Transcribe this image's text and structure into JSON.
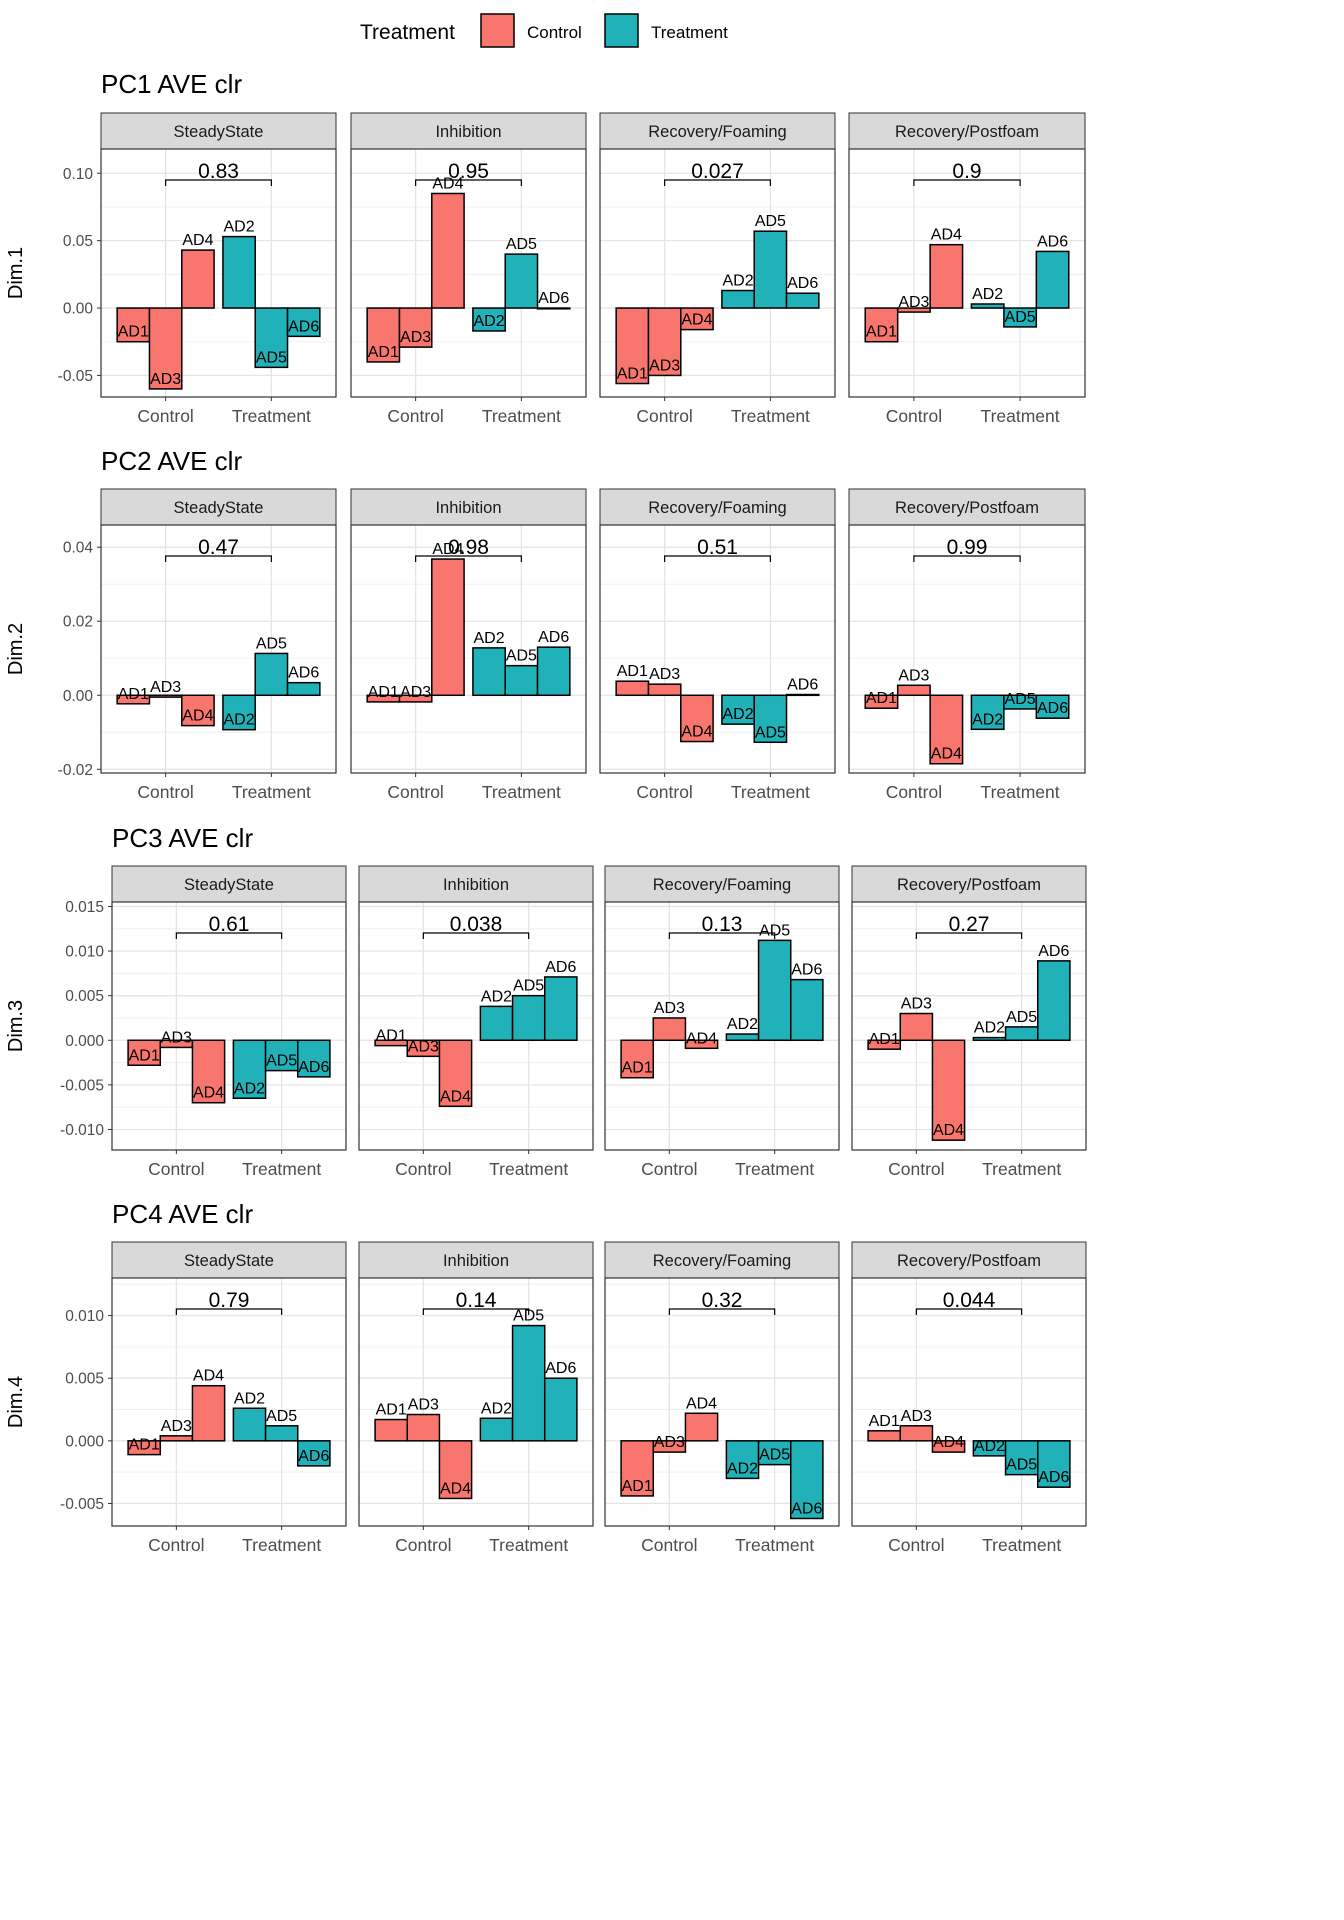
{
  "legend": {
    "title": "Treatment",
    "entries": [
      {
        "label": "Control",
        "color": "#F8766D"
      },
      {
        "label": "Treatment",
        "color": "#00BFC4"
      }
    ]
  },
  "colors": {
    "Control": "#F8766D",
    "Treatment": "#20B2B8"
  },
  "facets": [
    "SteadyState",
    "Inhibition",
    "Recovery/Foaming",
    "Recovery/Postfoam"
  ],
  "x_categories": [
    "Control",
    "Treatment"
  ],
  "chart_data": [
    {
      "type": "bar",
      "title": "PC1 AVE clr",
      "ylabel": "Dim.1",
      "ylim": [
        -0.066,
        0.118
      ],
      "yticks": [
        {
          "v": 0.1,
          "label": "0.10"
        },
        {
          "v": 0.05,
          "label": "0.05"
        },
        {
          "v": 0.0,
          "label": "0.00"
        },
        {
          "v": -0.05,
          "label": "-0.05"
        }
      ],
      "panels": [
        {
          "facet": "SteadyState",
          "pvalue": "0.83",
          "bars": [
            {
              "label": "AD1",
              "group": "Control",
              "value": -0.025
            },
            {
              "label": "AD3",
              "group": "Control",
              "value": -0.06
            },
            {
              "label": "AD4",
              "group": "Control",
              "value": 0.043
            },
            {
              "label": "AD2",
              "group": "Treatment",
              "value": 0.053
            },
            {
              "label": "AD5",
              "group": "Treatment",
              "value": -0.044
            },
            {
              "label": "AD6",
              "group": "Treatment",
              "value": -0.021
            }
          ]
        },
        {
          "facet": "Inhibition",
          "pvalue": "0.95",
          "bars": [
            {
              "label": "AD1",
              "group": "Control",
              "value": -0.04
            },
            {
              "label": "AD3",
              "group": "Control",
              "value": -0.029
            },
            {
              "label": "AD4",
              "group": "Control",
              "value": 0.085
            },
            {
              "label": "AD2",
              "group": "Treatment",
              "value": -0.017
            },
            {
              "label": "AD5",
              "group": "Treatment",
              "value": 0.04
            },
            {
              "label": "AD6",
              "group": "Treatment",
              "value": 0.0
            }
          ]
        },
        {
          "facet": "Recovery/Foaming",
          "pvalue": "0.027",
          "bars": [
            {
              "label": "AD1",
              "group": "Control",
              "value": -0.056
            },
            {
              "label": "AD3",
              "group": "Control",
              "value": -0.05
            },
            {
              "label": "AD4",
              "group": "Control",
              "value": -0.016
            },
            {
              "label": "AD2",
              "group": "Treatment",
              "value": 0.013
            },
            {
              "label": "AD5",
              "group": "Treatment",
              "value": 0.057
            },
            {
              "label": "AD6",
              "group": "Treatment",
              "value": 0.011
            }
          ]
        },
        {
          "facet": "Recovery/Postfoam",
          "pvalue": "0.9",
          "bars": [
            {
              "label": "AD1",
              "group": "Control",
              "value": -0.025
            },
            {
              "label": "AD3",
              "group": "Control",
              "value": -0.003
            },
            {
              "label": "AD4",
              "group": "Control",
              "value": 0.047
            },
            {
              "label": "AD2",
              "group": "Treatment",
              "value": 0.003
            },
            {
              "label": "AD5",
              "group": "Treatment",
              "value": -0.014
            },
            {
              "label": "AD6",
              "group": "Treatment",
              "value": 0.042
            }
          ]
        }
      ]
    },
    {
      "type": "bar",
      "title": "PC2 AVE clr",
      "ylabel": "Dim.2",
      "ylim": [
        -0.021,
        0.046
      ],
      "yticks": [
        {
          "v": 0.04,
          "label": "0.04"
        },
        {
          "v": 0.02,
          "label": "0.02"
        },
        {
          "v": 0.0,
          "label": "0.00"
        },
        {
          "v": -0.02,
          "label": "-0.02"
        }
      ],
      "panels": [
        {
          "facet": "SteadyState",
          "pvalue": "0.47",
          "bars": [
            {
              "label": "AD1",
              "group": "Control",
              "value": -0.0023
            },
            {
              "label": "AD3",
              "group": "Control",
              "value": -0.0005
            },
            {
              "label": "AD4",
              "group": "Control",
              "value": -0.0082
            },
            {
              "label": "AD2",
              "group": "Treatment",
              "value": -0.0093
            },
            {
              "label": "AD5",
              "group": "Treatment",
              "value": 0.0113
            },
            {
              "label": "AD6",
              "group": "Treatment",
              "value": 0.0034
            }
          ]
        },
        {
          "facet": "Inhibition",
          "pvalue": "0.98",
          "bars": [
            {
              "label": "AD1",
              "group": "Control",
              "value": -0.0018
            },
            {
              "label": "AD3",
              "group": "Control",
              "value": -0.0018
            },
            {
              "label": "AD4",
              "group": "Control",
              "value": 0.0368
            },
            {
              "label": "AD2",
              "group": "Treatment",
              "value": 0.0128
            },
            {
              "label": "AD5",
              "group": "Treatment",
              "value": 0.008
            },
            {
              "label": "AD6",
              "group": "Treatment",
              "value": 0.013
            }
          ]
        },
        {
          "facet": "Recovery/Foaming",
          "pvalue": "0.51",
          "bars": [
            {
              "label": "AD1",
              "group": "Control",
              "value": 0.0038
            },
            {
              "label": "AD3",
              "group": "Control",
              "value": 0.003
            },
            {
              "label": "AD4",
              "group": "Control",
              "value": -0.0125
            },
            {
              "label": "AD2",
              "group": "Treatment",
              "value": -0.0078
            },
            {
              "label": "AD5",
              "group": "Treatment",
              "value": -0.0127
            },
            {
              "label": "AD6",
              "group": "Treatment",
              "value": 0.0002
            }
          ]
        },
        {
          "facet": "Recovery/Postfoam",
          "pvalue": "0.99",
          "bars": [
            {
              "label": "AD1",
              "group": "Control",
              "value": -0.0035
            },
            {
              "label": "AD3",
              "group": "Control",
              "value": 0.0027
            },
            {
              "label": "AD4",
              "group": "Control",
              "value": -0.0185
            },
            {
              "label": "AD2",
              "group": "Treatment",
              "value": -0.0092
            },
            {
              "label": "AD5",
              "group": "Treatment",
              "value": -0.0037
            },
            {
              "label": "AD6",
              "group": "Treatment",
              "value": -0.0062
            }
          ]
        }
      ]
    },
    {
      "type": "bar",
      "title": "PC3 AVE clr",
      "ylabel": "Dim.3",
      "ylim": [
        -0.0123,
        0.0155
      ],
      "yticks": [
        {
          "v": 0.015,
          "label": "0.015"
        },
        {
          "v": 0.01,
          "label": "0.010"
        },
        {
          "v": 0.005,
          "label": "0.005"
        },
        {
          "v": 0.0,
          "label": "0.000"
        },
        {
          "v": -0.005,
          "label": "-0.005"
        },
        {
          "v": -0.01,
          "label": "-0.010"
        }
      ],
      "panels": [
        {
          "facet": "SteadyState",
          "pvalue": "0.61",
          "bars": [
            {
              "label": "AD1",
              "group": "Control",
              "value": -0.0028
            },
            {
              "label": "AD3",
              "group": "Control",
              "value": -0.0008
            },
            {
              "label": "AD4",
              "group": "Control",
              "value": -0.007
            },
            {
              "label": "AD2",
              "group": "Treatment",
              "value": -0.0065
            },
            {
              "label": "AD5",
              "group": "Treatment",
              "value": -0.0034
            },
            {
              "label": "AD6",
              "group": "Treatment",
              "value": -0.0041
            }
          ]
        },
        {
          "facet": "Inhibition",
          "pvalue": "0.038",
          "bars": [
            {
              "label": "AD1",
              "group": "Control",
              "value": -0.0006
            },
            {
              "label": "AD3",
              "group": "Control",
              "value": -0.0018
            },
            {
              "label": "AD4",
              "group": "Control",
              "value": -0.0074
            },
            {
              "label": "AD2",
              "group": "Treatment",
              "value": 0.0038
            },
            {
              "label": "AD5",
              "group": "Treatment",
              "value": 0.005
            },
            {
              "label": "AD6",
              "group": "Treatment",
              "value": 0.0071
            }
          ]
        },
        {
          "facet": "Recovery/Foaming",
          "pvalue": "0.13",
          "bars": [
            {
              "label": "AD1",
              "group": "Control",
              "value": -0.0042
            },
            {
              "label": "AD3",
              "group": "Control",
              "value": 0.0025
            },
            {
              "label": "AD4",
              "group": "Control",
              "value": -0.0009
            },
            {
              "label": "AD2",
              "group": "Treatment",
              "value": 0.0007
            },
            {
              "label": "AD5",
              "group": "Treatment",
              "value": 0.0112
            },
            {
              "label": "AD6",
              "group": "Treatment",
              "value": 0.0068
            }
          ]
        },
        {
          "facet": "Recovery/Postfoam",
          "pvalue": "0.27",
          "bars": [
            {
              "label": "AD1",
              "group": "Control",
              "value": -0.001
            },
            {
              "label": "AD3",
              "group": "Control",
              "value": 0.003
            },
            {
              "label": "AD4",
              "group": "Control",
              "value": -0.0112
            },
            {
              "label": "AD2",
              "group": "Treatment",
              "value": 0.0003
            },
            {
              "label": "AD5",
              "group": "Treatment",
              "value": 0.0015
            },
            {
              "label": "AD6",
              "group": "Treatment",
              "value": 0.0089
            }
          ]
        }
      ]
    },
    {
      "type": "bar",
      "title": "PC4 AVE clr",
      "ylabel": "Dim.4",
      "ylim": [
        -0.0068,
        0.013
      ],
      "yticks": [
        {
          "v": 0.01,
          "label": "0.010"
        },
        {
          "v": 0.005,
          "label": "0.005"
        },
        {
          "v": 0.0,
          "label": "0.000"
        },
        {
          "v": -0.005,
          "label": "-0.005"
        }
      ],
      "panels": [
        {
          "facet": "SteadyState",
          "pvalue": "0.79",
          "bars": [
            {
              "label": "AD1",
              "group": "Control",
              "value": -0.0011
            },
            {
              "label": "AD3",
              "group": "Control",
              "value": 0.0004
            },
            {
              "label": "AD4",
              "group": "Control",
              "value": 0.0044
            },
            {
              "label": "AD2",
              "group": "Treatment",
              "value": 0.0026
            },
            {
              "label": "AD5",
              "group": "Treatment",
              "value": 0.0012
            },
            {
              "label": "AD6",
              "group": "Treatment",
              "value": -0.002
            }
          ]
        },
        {
          "facet": "Inhibition",
          "pvalue": "0.14",
          "bars": [
            {
              "label": "AD1",
              "group": "Control",
              "value": 0.0017
            },
            {
              "label": "AD3",
              "group": "Control",
              "value": 0.0021
            },
            {
              "label": "AD4",
              "group": "Control",
              "value": -0.0046
            },
            {
              "label": "AD2",
              "group": "Treatment",
              "value": 0.0018
            },
            {
              "label": "AD5",
              "group": "Treatment",
              "value": 0.0092
            },
            {
              "label": "AD6",
              "group": "Treatment",
              "value": 0.005
            }
          ]
        },
        {
          "facet": "Recovery/Foaming",
          "pvalue": "0.32",
          "bars": [
            {
              "label": "AD1",
              "group": "Control",
              "value": -0.0044
            },
            {
              "label": "AD3",
              "group": "Control",
              "value": -0.0009
            },
            {
              "label": "AD4",
              "group": "Control",
              "value": 0.0022
            },
            {
              "label": "AD2",
              "group": "Treatment",
              "value": -0.003
            },
            {
              "label": "AD5",
              "group": "Treatment",
              "value": -0.0019
            },
            {
              "label": "AD6",
              "group": "Treatment",
              "value": -0.0062
            }
          ]
        },
        {
          "facet": "Recovery/Postfoam",
          "pvalue": "0.044",
          "bars": [
            {
              "label": "AD1",
              "group": "Control",
              "value": 0.0008
            },
            {
              "label": "AD3",
              "group": "Control",
              "value": 0.0012
            },
            {
              "label": "AD4",
              "group": "Control",
              "value": -0.0009
            },
            {
              "label": "AD2",
              "group": "Treatment",
              "value": -0.0012
            },
            {
              "label": "AD5",
              "group": "Treatment",
              "value": -0.0027
            },
            {
              "label": "AD6",
              "group": "Treatment",
              "value": -0.0037
            }
          ]
        }
      ]
    }
  ]
}
